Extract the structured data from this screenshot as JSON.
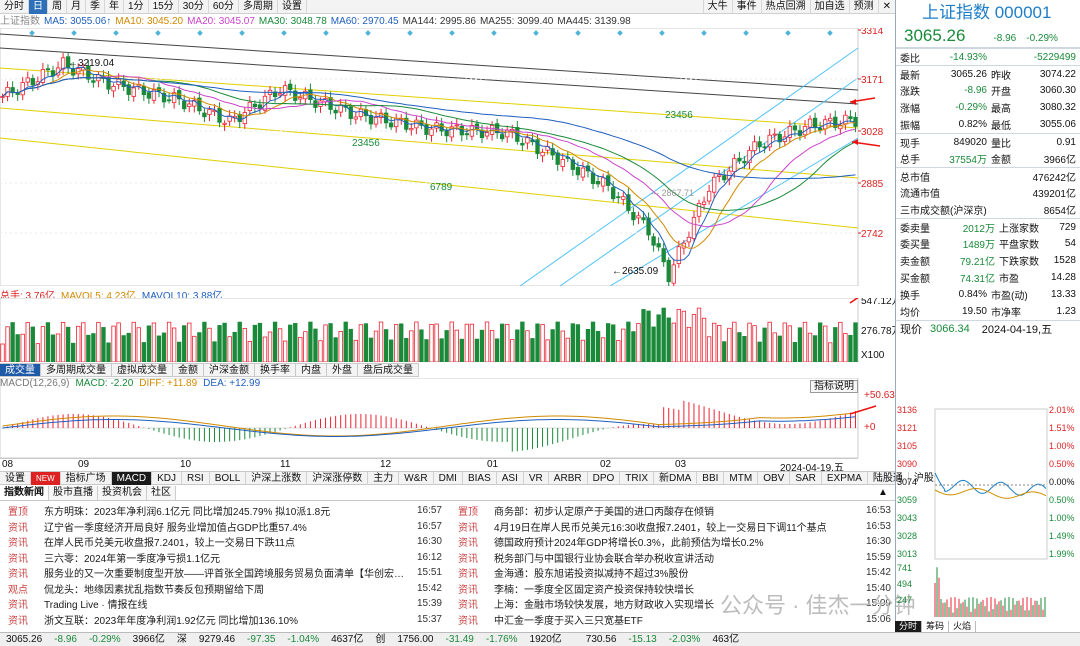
{
  "toolbar": {
    "periods": [
      "分时",
      "日",
      "周",
      "月",
      "季",
      "年",
      "1分",
      "15分",
      "30分",
      "60分",
      "多周期",
      "设置"
    ],
    "active_period": "日",
    "right_buttons": [
      "大牛",
      "事件",
      "热点回溯",
      "加自选",
      "预测"
    ]
  },
  "ma_bar": {
    "label": "上证指数",
    "items": [
      {
        "name": "MA5",
        "value": "3055.06↑",
        "color": "#1f5fbf"
      },
      {
        "name": "MA10",
        "value": "3045.20",
        "color": "#d08a00"
      },
      {
        "name": "MA20",
        "value": "3045.07",
        "color": "#cc44cc"
      },
      {
        "name": "MA30",
        "value": "3048.78",
        "color": "#1a8a3a"
      },
      {
        "name": "MA60",
        "value": "2970.45",
        "color": "#1f5fbf"
      },
      {
        "name": "MA144",
        "value": "2995.86",
        "color": "#333333"
      },
      {
        "name": "MA255",
        "value": "3099.40",
        "color": "#333333"
      },
      {
        "name": "MA445",
        "value": "3139.98",
        "color": "#333333"
      }
    ]
  },
  "main_chart": {
    "price_axis": [
      "3314",
      "3171",
      "3028",
      "2885",
      "2742"
    ],
    "annotations": {
      "high": "3219.04",
      "low": "2635.09",
      "mid": "2867.71"
    },
    "td_labels_top": [
      "23456",
      "789"
    ],
    "td_labels_down": [
      "23456",
      "89",
      "6789"
    ]
  },
  "volume": {
    "header_label": "总手: 3.76亿",
    "mavol5": "MAVOL5: 4.23亿",
    "mavol10": "MAVOL10: 3.88亿",
    "axis": [
      "547.12万",
      "276.78万",
      "X100"
    ],
    "tabs": [
      "成交量",
      "多周期成交量",
      "虚拟成交量",
      "金额",
      "沪深金额",
      "换手率",
      "内盘",
      "外盘",
      "盘后成交量"
    ]
  },
  "macd": {
    "header_label": "MACD(12,26,9)",
    "macd_value": "MACD: -2.20",
    "diff_value": "DIFF: +11.89",
    "dea_value": "DEA: +12.99",
    "explain_button": "指标说明",
    "axis": [
      "+50.63",
      "+0"
    ]
  },
  "date_axis": [
    "08",
    "09",
    "10",
    "11",
    "12",
    "01",
    "02",
    "03",
    "2024-04-19,五"
  ],
  "indicator_tabs": [
    "设置",
    "NEW",
    "指标广场",
    "MACD",
    "KDJ",
    "RSI",
    "BOLL",
    "沪深上涨数",
    "沪深涨停数",
    "主力",
    "W&R",
    "DMI",
    "BIAS",
    "ASI",
    "VR",
    "ARBR",
    "DPO",
    "TRIX",
    "新DMA",
    "BBI",
    "MTM",
    "OBV",
    "SAR",
    "EXPMA",
    "陆股通",
    "沪股通"
  ],
  "news_tabs": [
    "指数新闻",
    "股市直播",
    "投资机会",
    "社区"
  ],
  "news_left": [
    {
      "type": "置顶",
      "title": "东方明珠：2023年净利润6.1亿元 同比增加245.79% 拟10派1.8元",
      "time": "16:57"
    },
    {
      "type": "资讯",
      "title": "辽宁省一季度经济开局良好 服务业增加值占GDP比重57.4%",
      "time": "16:57"
    },
    {
      "type": "资讯",
      "title": "在岸人民币兑美元收盘报7.2401，较上一交易日下跌11点",
      "time": "16:30"
    },
    {
      "type": "资讯",
      "title": "三六零：2024年第一季度净亏损1.1亿元",
      "time": "16:12"
    },
    {
      "type": "资讯",
      "title": "服务业的又一次重要制度型开放——评首张全国跨境服务贸易负面清单【华创宏观…",
      "time": "15:51"
    },
    {
      "type": "观点",
      "title": "侃龙头：地缘因素扰乱指数节奏反包预期留给下周",
      "time": "15:42"
    },
    {
      "type": "资讯",
      "title": "Trading Live · 情报在线",
      "time": "15:39"
    },
    {
      "type": "资讯",
      "title": "浙文互联：2023年年度净利润1.92亿元 同比增加136.10%",
      "time": "15:37"
    }
  ],
  "news_right": [
    {
      "type": "置顶",
      "title": "商务部：初步认定原产于美国的进口丙酸存在倾销",
      "time": "16:53"
    },
    {
      "type": "资讯",
      "title": "4月19日在岸人民币兑美元16:30收盘报7.2401，较上一交易日下调11个基点",
      "time": "16:53"
    },
    {
      "type": "资讯",
      "title": "德国政府预计2024年GDP将增长0.3%，此前预估为增长0.2%",
      "time": "16:30"
    },
    {
      "type": "资讯",
      "title": "税务部门与中国银行业协会联合举办税收宣讲活动",
      "time": "15:59"
    },
    {
      "type": "资讯",
      "title": "金海通：股东旭诺投资拟减持不超过3%股份",
      "time": "15:42"
    },
    {
      "type": "资讯",
      "title": "李楠：一季度全区固定资产投资保持较快增长",
      "time": "15:40"
    },
    {
      "type": "资讯",
      "title": "上海：金融市场较快发展，地方财政收入实现增长",
      "time": "15:09"
    },
    {
      "type": "资讯",
      "title": "中汇金一季度于买入三只宽基ETF",
      "time": "15:06"
    }
  ],
  "status_bar": [
    "3065.26",
    "-8.96",
    "-0.29%",
    "3966亿",
    "深",
    "9279.46",
    "-97.35",
    "-1.04%",
    "4637亿",
    "创",
    "1756.00",
    "-31.49",
    "-1.76%",
    "1920亿",
    "",
    "730.56",
    "-15.13",
    "-2.03%",
    "463亿"
  ],
  "right_panel": {
    "title": "上证指数 000001",
    "price": "3065.26",
    "change": "-8.96",
    "change_pct": "-0.29%",
    "rows1": [
      {
        "k": "委比",
        "v": "-14.93%",
        "k2": "",
        "v2": "-5229499"
      }
    ],
    "rows2": [
      {
        "k": "最新",
        "v": "3065.26",
        "k2": "昨收",
        "v2": "3074.22"
      },
      {
        "k": "涨跌",
        "v": "-8.96",
        "k2": "开盘",
        "v2": "3060.30"
      },
      {
        "k": "涨幅",
        "v": "-0.29%",
        "k2": "最高",
        "v2": "3080.32"
      },
      {
        "k": "振幅",
        "v": "0.82%",
        "k2": "最低",
        "v2": "3055.06"
      }
    ],
    "rows3": [
      {
        "k": "现手",
        "v": "849020",
        "k2": "量比",
        "v2": "0.91"
      },
      {
        "k": "总手",
        "v": "37554万",
        "k2": "金额",
        "v2": "3966亿"
      }
    ],
    "rows4": [
      {
        "k": "总市值",
        "v2": "476242亿"
      },
      {
        "k": "流通市值",
        "v2": "439201亿"
      },
      {
        "k": "三市成交额(沪深京)",
        "v2": "8654亿"
      }
    ],
    "rows5": [
      {
        "k": "委卖量",
        "v": "2012万",
        "k2": "上涨家数",
        "v2": "729"
      },
      {
        "k": "委买量",
        "v": "1489万",
        "k2": "平盘家数",
        "v2": "54"
      },
      {
        "k": "卖金额",
        "v": "79.21亿",
        "k2": "下跌家数",
        "v2": "1528"
      },
      {
        "k": "买金额",
        "v": "74.31亿",
        "k2": "市盈",
        "v2": "14.28"
      },
      {
        "k": "换手",
        "v": "0.84%",
        "k2": "市盈(动)",
        "v2": "13.33"
      },
      {
        "k": "均价",
        "v": "19.50",
        "k2": "市净率",
        "v2": "1.23"
      }
    ],
    "intraday": {
      "label": "现价",
      "price": "3066.34",
      "date": "2024-04-19,五",
      "left_axis": [
        "3136",
        "3121",
        "3105",
        "3090",
        "3074",
        "3059",
        "3043",
        "3028",
        "3013",
        "741",
        "494",
        "247"
      ],
      "right_axis": [
        "2.01%",
        "1.51%",
        "1.00%",
        "0.50%",
        "0.00%",
        "0.50%",
        "1.00%",
        "1.49%",
        "1.99%"
      ],
      "tabs": [
        "分时",
        "筹码",
        "火焰"
      ]
    }
  },
  "watermark": "公众号 · 佳杰一分钟"
}
